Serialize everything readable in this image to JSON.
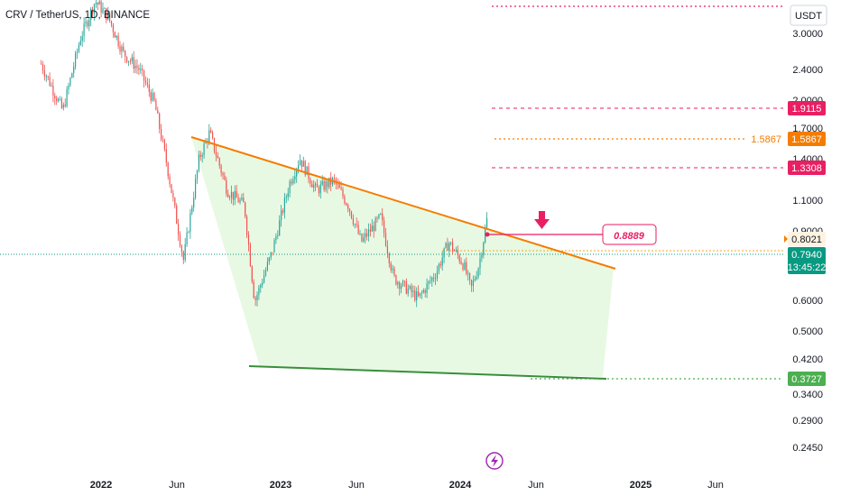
{
  "header": {
    "symbol_line": "CRV / TetherUS, 1D, BINANCE"
  },
  "price_axis": {
    "currency_label": "USDT",
    "ticks": [
      "3.0000",
      "2.4000",
      "2.0000",
      "1.7000",
      "1.4000",
      "1.1000",
      "0.9000",
      "0.6000",
      "0.5000",
      "0.4200",
      "0.3400",
      "0.2900",
      "0.2450"
    ]
  },
  "time_axis": {
    "ticks": [
      "2022",
      "Jun",
      "2023",
      "Jun",
      "2024",
      "Jun",
      "2025",
      "Jun"
    ]
  },
  "price_tags": [
    {
      "name": "level-1-9115",
      "text": "1.9115",
      "bg": "#e91e63",
      "fg": "#ffffff"
    },
    {
      "name": "level-1-5867",
      "text": "1.5867",
      "bg": "#f57c00",
      "fg": "#ffffff"
    },
    {
      "name": "level-1-3308",
      "text": "1.3308",
      "bg": "#e91e63",
      "fg": "#ffffff"
    },
    {
      "name": "level-0-8021",
      "text": "0.8021",
      "bg": "#fff3e0",
      "fg": "#131722"
    },
    {
      "name": "current-price",
      "text": "0.7940",
      "bg": "#089981",
      "fg": "#ffffff"
    },
    {
      "name": "countdown",
      "text": "13:45:22",
      "bg": "#089981",
      "fg": "#ffffff"
    },
    {
      "name": "support-0-3727",
      "text": "0.3727",
      "bg": "#4caf50",
      "fg": "#ffffff"
    }
  ],
  "annotations": {
    "target_label": "0.8889",
    "level_label_1_5867": "1.5867"
  },
  "colors": {
    "up_candle": "#26a69a",
    "down_candle": "#ef5350",
    "resistance_line": "#f57c00",
    "support_line": "#4caf50",
    "wedge_fill": "#e8f9e3",
    "pink": "#e91e63",
    "orange": "#f57c00",
    "current": "#089981"
  },
  "chart_data": {
    "type": "candlestick",
    "pattern": "falling wedge",
    "x_axis": "date",
    "y_axis": "log price (USDT)",
    "ylim": [
      0.23,
      3.6
    ],
    "horizontal_levels": [
      3.5,
      1.9115,
      1.5867,
      1.3308,
      0.8021,
      0.3727
    ],
    "current_price": 0.794,
    "resistance_trendline": [
      {
        "x": "2022-06-20",
        "y": 1.55
      },
      {
        "x": "2024-11-20",
        "y": 0.7
      }
    ],
    "support_trendline": [
      {
        "x": "2022-11-05",
        "y": 0.4
      },
      {
        "x": "2024-11-20",
        "y": 0.37
      }
    ],
    "target_annotation": {
      "x": "2024-02-20",
      "y": 0.8889
    },
    "price_path": [
      {
        "x": "2021-09-01",
        "y": 2.4
      },
      {
        "x": "2021-10-15",
        "y": 1.7
      },
      {
        "x": "2021-11-20",
        "y": 2.9
      },
      {
        "x": "2021-12-20",
        "y": 3.8
      },
      {
        "x": "2022-01-15",
        "y": 3.4
      },
      {
        "x": "2022-02-15",
        "y": 2.6
      },
      {
        "x": "2022-03-20",
        "y": 2.3
      },
      {
        "x": "2022-04-20",
        "y": 1.8
      },
      {
        "x": "2022-05-15",
        "y": 1.15
      },
      {
        "x": "2022-06-18",
        "y": 0.57
      },
      {
        "x": "2022-07-20",
        "y": 1.2
      },
      {
        "x": "2022-08-10",
        "y": 1.45
      },
      {
        "x": "2022-09-15",
        "y": 0.95
      },
      {
        "x": "2022-10-20",
        "y": 0.85
      },
      {
        "x": "2022-11-10",
        "y": 0.42
      },
      {
        "x": "2022-12-15",
        "y": 0.6
      },
      {
        "x": "2023-01-20",
        "y": 1.0
      },
      {
        "x": "2023-02-10",
        "y": 1.2
      },
      {
        "x": "2023-03-15",
        "y": 0.95
      },
      {
        "x": "2023-04-20",
        "y": 1.02
      },
      {
        "x": "2023-05-20",
        "y": 0.85
      },
      {
        "x": "2023-06-15",
        "y": 0.65
      },
      {
        "x": "2023-07-25",
        "y": 0.78
      },
      {
        "x": "2023-08-20",
        "y": 0.5
      },
      {
        "x": "2023-10-10",
        "y": 0.43
      },
      {
        "x": "2023-11-15",
        "y": 0.52
      },
      {
        "x": "2023-12-10",
        "y": 0.65
      },
      {
        "x": "2024-01-10",
        "y": 0.55
      },
      {
        "x": "2024-01-25",
        "y": 0.46
      },
      {
        "x": "2024-02-10",
        "y": 0.55
      },
      {
        "x": "2024-02-28",
        "y": 0.79
      }
    ]
  }
}
